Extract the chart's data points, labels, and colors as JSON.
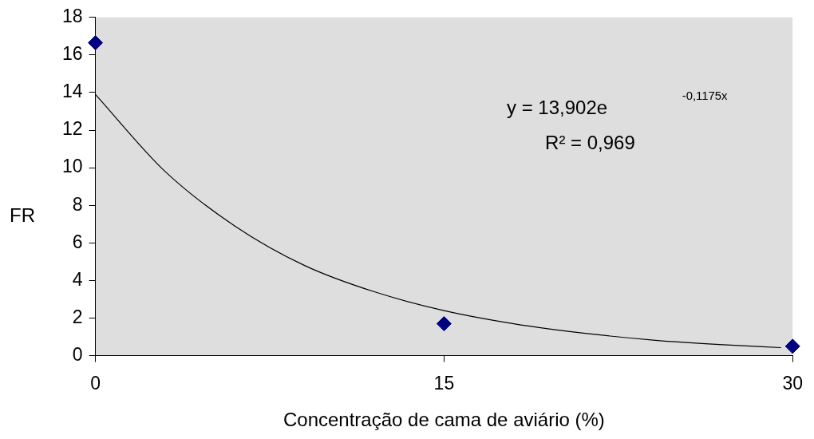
{
  "chart_data": {
    "type": "scatter",
    "xlabel": "Concentração de cama de aviário (%)",
    "ylabel": "FR",
    "xlim": [
      0,
      30
    ],
    "xticks": [
      0,
      15,
      30
    ],
    "ylim": [
      0,
      18
    ],
    "yticks": [
      0,
      2,
      4,
      6,
      8,
      10,
      12,
      14,
      16,
      18
    ],
    "grid": false,
    "legend": false,
    "series": [
      {
        "type": "scatter",
        "color": "#000080",
        "marker": "diamond",
        "x": [
          0,
          15,
          30
        ],
        "values": [
          16.65,
          1.7,
          0.5
        ]
      },
      {
        "type": "line",
        "color": "#000000",
        "marker": "none",
        "line_style": "solid",
        "x": [
          0,
          3,
          6,
          9,
          12,
          15,
          18,
          21,
          24,
          27,
          29.5
        ],
        "values": [
          13.9,
          9.8,
          6.9,
          4.8,
          3.4,
          2.4,
          1.7,
          1.2,
          0.83,
          0.58,
          0.43
        ]
      }
    ],
    "annotations": [
      "y = 13,902e$^{-0,1175x}$",
      "R² = 0,969"
    ]
  }
}
